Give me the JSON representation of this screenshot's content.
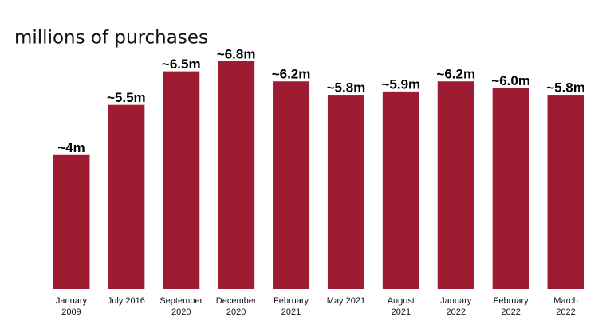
{
  "chart_data": {
    "type": "bar",
    "title": "millions of purchases",
    "categories": [
      "January\n2009",
      "July 2016",
      "September\n2020",
      "December\n2020",
      "February\n2021",
      "May 2021",
      "August\n2021",
      "January\n2022",
      "February\n2022",
      "March\n2022"
    ],
    "values": [
      4,
      5.5,
      6.5,
      6.8,
      6.2,
      5.8,
      5.9,
      6.2,
      6.0,
      5.8
    ],
    "value_labels": [
      "~4m",
      "~5.5m",
      "~6.5m",
      "~6.8m",
      "~6.2m",
      "~5.8m",
      "~5.9m",
      "~6.2m",
      "~6.0m",
      "~5.8m"
    ],
    "color": "#9e1b32"
  }
}
